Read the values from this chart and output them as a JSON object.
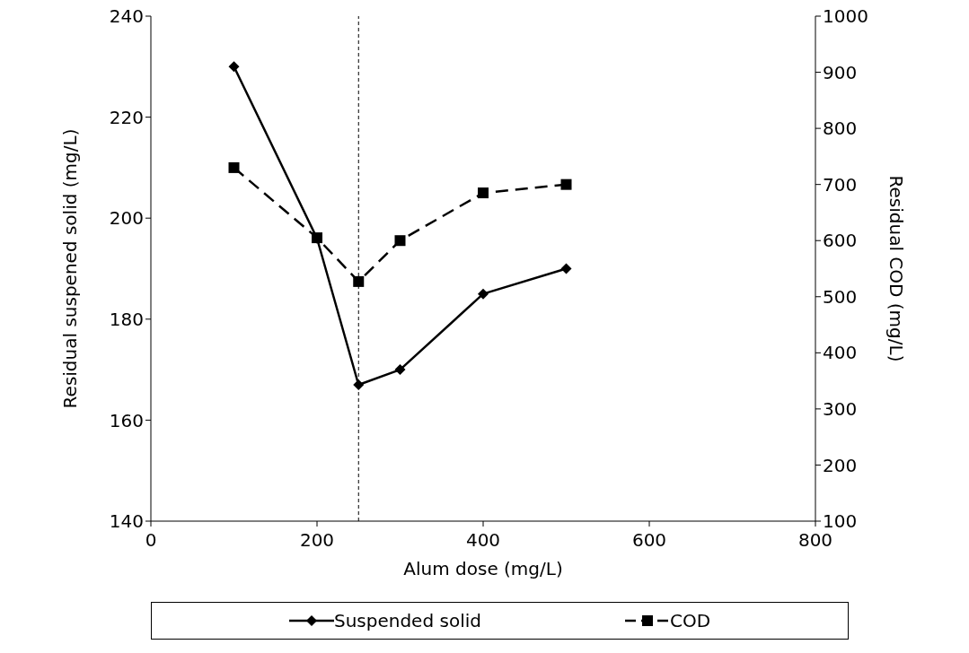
{
  "chart_data": {
    "type": "line",
    "xlabel": "Alum dose (mg/L)",
    "ylabel": "Residual suspened solid (mg/L)",
    "y2label": "Residual COD (mg/L)",
    "x": [
      100,
      200,
      250,
      300,
      400,
      500
    ],
    "series": [
      {
        "name": "Suspended solid",
        "color": "#000000",
        "values": [
          230,
          196,
          167,
          170,
          185,
          190
        ],
        "marker": "diamond",
        "line_style": "solid"
      },
      {
        "name": "COD",
        "color": "#000000",
        "values": [
          730,
          605,
          527,
          600,
          685,
          700
        ],
        "marker": "square",
        "line_style": "dashed",
        "axis": "y2"
      }
    ],
    "xlim": [
      0,
      800
    ],
    "xticks": [
      0,
      200,
      400,
      600,
      800
    ],
    "ylim": [
      140,
      240
    ],
    "yticks": [
      140,
      160,
      180,
      200,
      220,
      240
    ],
    "y2lim": [
      100,
      1000
    ],
    "y2ticks": [
      100,
      200,
      300,
      400,
      500,
      600,
      700,
      800,
      900,
      1000
    ],
    "ref_lines": [
      {
        "axis": "x",
        "value": 250,
        "line_style": "dashed"
      }
    ],
    "grid": false,
    "legend": "bottom"
  }
}
